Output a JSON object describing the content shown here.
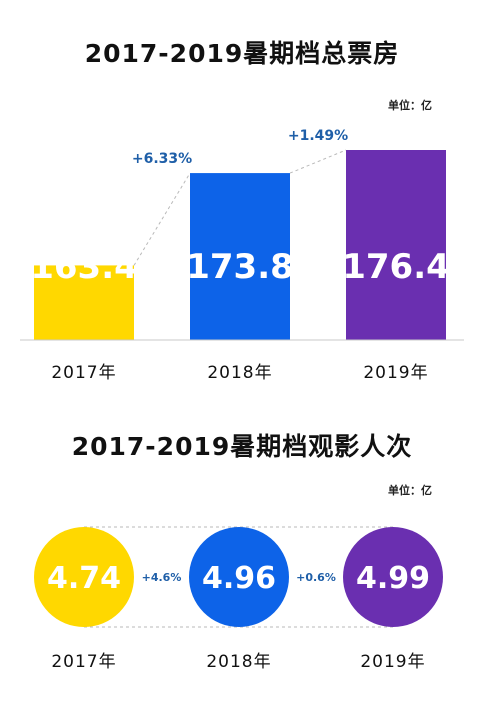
{
  "chart_data": [
    {
      "type": "bar",
      "title": "2017-2019暑期档总票房",
      "unit": "单位：亿",
      "categories": [
        "2017年",
        "2018年",
        "2019年"
      ],
      "values": [
        163.4,
        173.8,
        176.4
      ],
      "value_labels": [
        "163.4",
        "173.8",
        "176.4"
      ],
      "growth_labels": [
        "+6.33%",
        "+1.49%"
      ],
      "colors": [
        "#FFD800",
        "#0D63E8",
        "#6A2FB0"
      ],
      "growth_color": "#1F5FA8",
      "baseline": 155
    },
    {
      "type": "bubble",
      "title": "2017-2019暑期档观影人次",
      "unit": "单位：亿",
      "categories": [
        "2017年",
        "2018年",
        "2019年"
      ],
      "values": [
        4.74,
        4.96,
        4.99
      ],
      "value_labels": [
        "4.74",
        "4.96",
        "4.99"
      ],
      "growth_labels": [
        "+4.6%",
        "+0.6%"
      ],
      "colors": [
        "#FFD800",
        "#0D63E8",
        "#6A2FB0"
      ],
      "growth_color": "#1F5FA8"
    }
  ]
}
